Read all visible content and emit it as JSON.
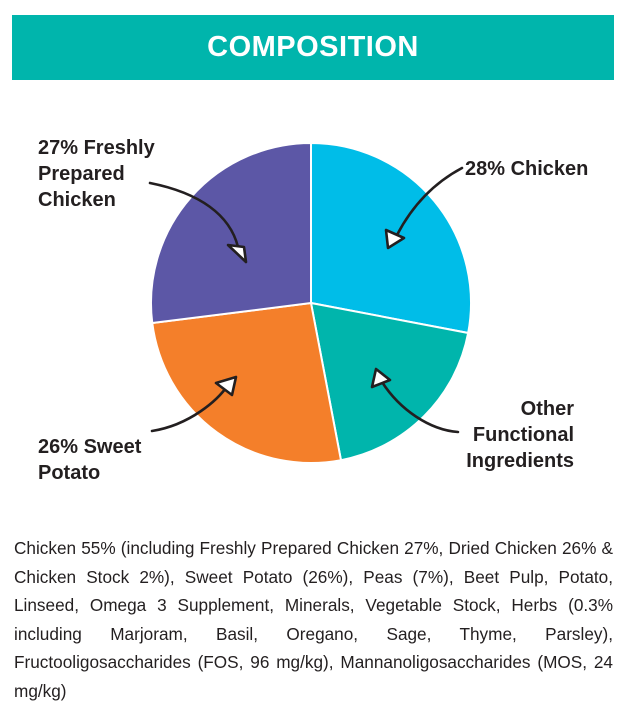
{
  "header": {
    "title": "COMPOSITION",
    "color": "#00b5ac"
  },
  "chart_data": {
    "type": "pie",
    "title": "",
    "slices": [
      {
        "label": "28% Chicken",
        "value": 28,
        "color": "#00bde8"
      },
      {
        "label": "Other Functional Ingredients",
        "value": 19,
        "color": "#00b5ac"
      },
      {
        "label": "26% Sweet Potato",
        "value": 26,
        "color": "#f47f2a"
      },
      {
        "label": "27% Freshly Prepared Chicken",
        "value": 27,
        "color": "#5c57a6"
      }
    ]
  },
  "labels": {
    "freshly_prepared": [
      "27% Freshly",
      "Prepared",
      "Chicken"
    ],
    "chicken": [
      "28% Chicken"
    ],
    "sweet_potato": [
      "26% Sweet",
      "Potato"
    ],
    "other": [
      "Other",
      "Functional",
      "Ingredients"
    ]
  },
  "description": "Chicken 55% (including Freshly Prepared Chicken 27%, Dried Chicken 26% & Chicken Stock 2%), Sweet Potato (26%), Peas (7%), Beet Pulp, Potato, Linseed, Omega 3 Supplement, Minerals, Vegetable Stock, Herbs (0.3% including Marjoram, Basil, Oregano, Sage, Thyme, Parsley), Fructooligosaccharides (FOS, 96 mg/kg), Mannanoligosaccharides (MOS, 24 mg/kg)"
}
